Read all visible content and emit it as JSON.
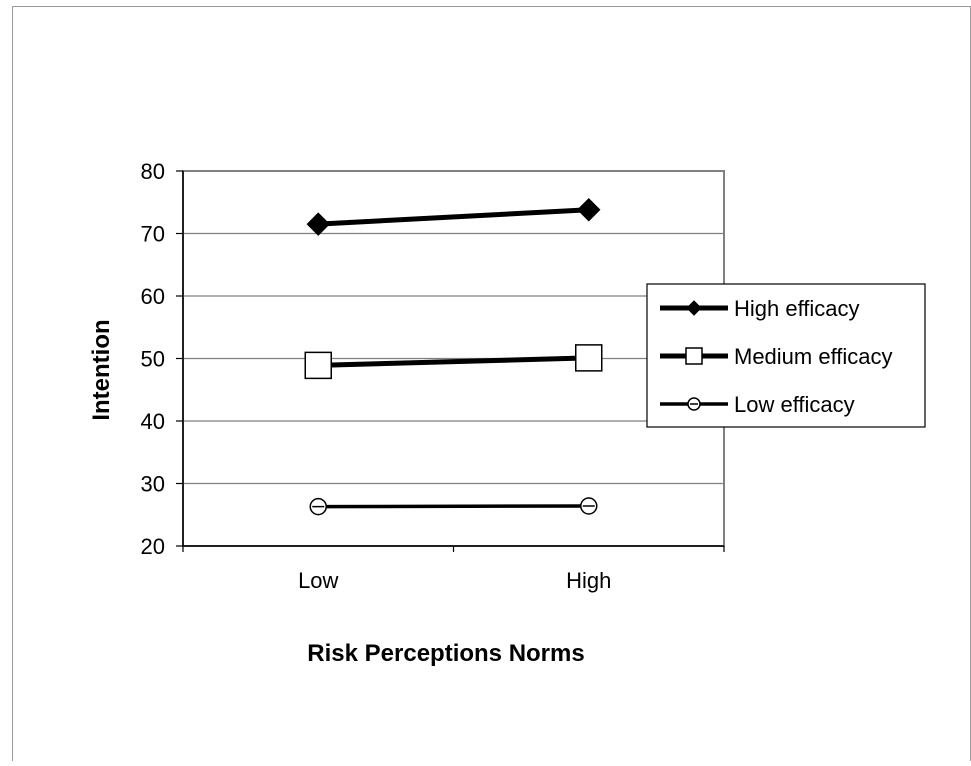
{
  "chart_data": {
    "type": "line",
    "title": "",
    "xlabel": "Risk Perceptions Norms",
    "ylabel": "Intention",
    "categories": [
      "Low",
      "High"
    ],
    "ylim": [
      20,
      80
    ],
    "yticks": [
      20,
      30,
      40,
      50,
      60,
      70,
      80
    ],
    "grid": true,
    "legend_position": "right",
    "series": [
      {
        "name": "High efficacy",
        "values": [
          71.5,
          73.8
        ],
        "marker": "diamond-filled",
        "line_width": "thick"
      },
      {
        "name": "Medium efficacy",
        "values": [
          48.9,
          50.1
        ],
        "marker": "square-open",
        "line_width": "thick"
      },
      {
        "name": "Low efficacy",
        "values": [
          26.3,
          26.4
        ],
        "marker": "circle-open",
        "line_width": "medium"
      }
    ],
    "colors": {
      "line": "#000000",
      "grid": "#808080",
      "frame": "#808080",
      "background": "#ffffff"
    }
  }
}
